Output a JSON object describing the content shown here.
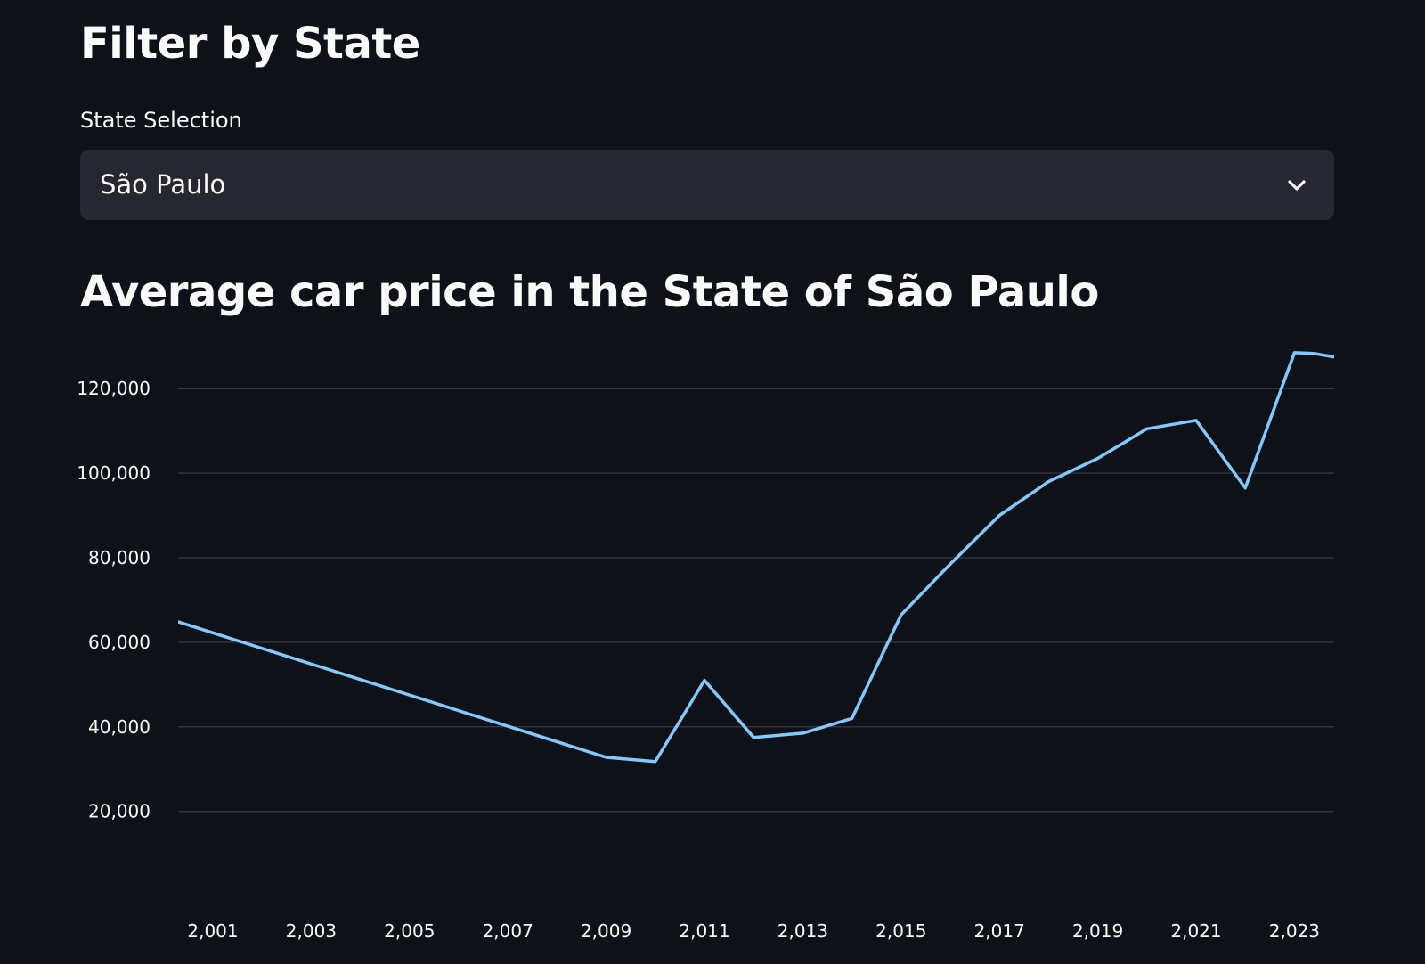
{
  "filter": {
    "title": "Filter by State",
    "label": "State Selection",
    "selected": "São Paulo"
  },
  "icons": {
    "dropdown": "chevron-down-icon"
  },
  "colors": {
    "background": "#0e1117",
    "select_background": "#262730",
    "line": "#83c9ff",
    "grid": "#31333f"
  },
  "chart_title": "Average car price in the State of São Paulo",
  "chart_data": {
    "type": "line",
    "title": "Average car price in the State of São Paulo",
    "xlabel": "",
    "ylabel": "",
    "xlim": [
      2000.3,
      2023.8
    ],
    "ylim": [
      0,
      130000
    ],
    "x_ticks": [
      2001,
      2003,
      2005,
      2007,
      2009,
      2011,
      2013,
      2015,
      2017,
      2019,
      2021,
      2023
    ],
    "x_tick_labels": [
      "2,001",
      "2,003",
      "2,005",
      "2,007",
      "2,009",
      "2,011",
      "2,013",
      "2,015",
      "2,017",
      "2,019",
      "2,021",
      "2,023"
    ],
    "y_ticks": [
      20000,
      40000,
      60000,
      80000,
      100000,
      120000
    ],
    "y_tick_labels": [
      "20,000",
      "40,000",
      "60,000",
      "80,000",
      "100,000",
      "120,000"
    ],
    "grid": true,
    "series": [
      {
        "x": [
          2000.3,
          2009,
          2010,
          2011,
          2012,
          2013,
          2014,
          2015,
          2016,
          2017,
          2018,
          2019,
          2020,
          2021,
          2022,
          2023,
          2023.4,
          2023.8
        ],
        "y": [
          64800,
          32800,
          31800,
          51000,
          37500,
          38500,
          42000,
          66500,
          78500,
          90000,
          98000,
          103500,
          110500,
          112500,
          96500,
          128500,
          128300,
          127500
        ]
      }
    ]
  }
}
